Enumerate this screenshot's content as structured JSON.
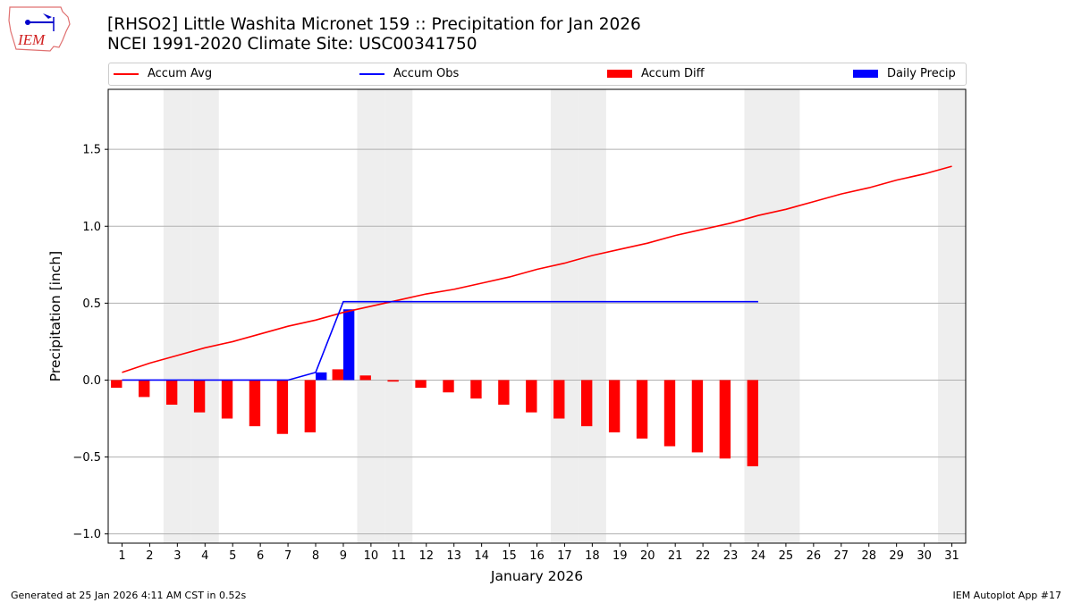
{
  "title_line1": "[RHSO2] Little Washita Micronet 159 :: Precipitation for Jan 2026",
  "title_line2": "NCEI 1991-2020 Climate Site: USC00341750",
  "footer_left": "Generated at 25 Jan 2026 4:11 AM CST in 0.52s",
  "footer_right": "IEM Autoplot App #17",
  "logo_text": "IEM",
  "chart_data": {
    "type": "bar",
    "xlabel": "January 2026",
    "ylabel": "Precipitation [inch]",
    "xlim": [
      0.5,
      31.5
    ],
    "ylim": [
      -1.06,
      1.89
    ],
    "yticks": [
      -1.0,
      -0.5,
      0.0,
      0.5,
      1.0,
      1.5
    ],
    "ytick_labels": [
      "−1.0",
      "−0.5",
      "0.0",
      "0.5",
      "1.0",
      "1.5"
    ],
    "grid": "y",
    "legend_placement": "top",
    "weekend_days": [
      3,
      4,
      10,
      11,
      17,
      18,
      24,
      25,
      31
    ],
    "days": [
      1,
      2,
      3,
      4,
      5,
      6,
      7,
      8,
      9,
      10,
      11,
      12,
      13,
      14,
      15,
      16,
      17,
      18,
      19,
      20,
      21,
      22,
      23,
      24,
      25,
      26,
      27,
      28,
      29,
      30,
      31
    ],
    "series": [
      {
        "name": "Accum Avg",
        "kind": "line",
        "color": "#ff0000",
        "values": [
          0.05,
          0.11,
          0.16,
          0.21,
          0.25,
          0.3,
          0.35,
          0.39,
          0.44,
          0.48,
          0.52,
          0.56,
          0.59,
          0.63,
          0.67,
          0.72,
          0.76,
          0.81,
          0.85,
          0.89,
          0.94,
          0.98,
          1.02,
          1.07,
          1.11,
          1.16,
          1.21,
          1.25,
          1.3,
          1.34,
          1.39
        ]
      },
      {
        "name": "Accum Obs",
        "kind": "line",
        "color": "#0000ff",
        "values": [
          0,
          0,
          0,
          0,
          0,
          0,
          0,
          0.05,
          0.51,
          0.51,
          0.51,
          0.51,
          0.51,
          0.51,
          0.51,
          0.51,
          0.51,
          0.51,
          0.51,
          0.51,
          0.51,
          0.51,
          0.51,
          0.51
        ]
      },
      {
        "name": "Accum Diff",
        "kind": "bar",
        "color": "#ff0000",
        "values": [
          -0.05,
          -0.11,
          -0.16,
          -0.21,
          -0.25,
          -0.3,
          -0.35,
          -0.34,
          0.07,
          0.03,
          -0.01,
          -0.05,
          -0.08,
          -0.12,
          -0.16,
          -0.21,
          -0.25,
          -0.3,
          -0.34,
          -0.38,
          -0.43,
          -0.47,
          -0.51,
          -0.56
        ]
      },
      {
        "name": "Daily Precip",
        "kind": "bar",
        "color": "#0000ff",
        "values": [
          0,
          0,
          0,
          0,
          0,
          0,
          0,
          0.05,
          0.46,
          0,
          0,
          0,
          0,
          0,
          0,
          0,
          0,
          0,
          0,
          0,
          0,
          0,
          0,
          0
        ]
      }
    ]
  }
}
